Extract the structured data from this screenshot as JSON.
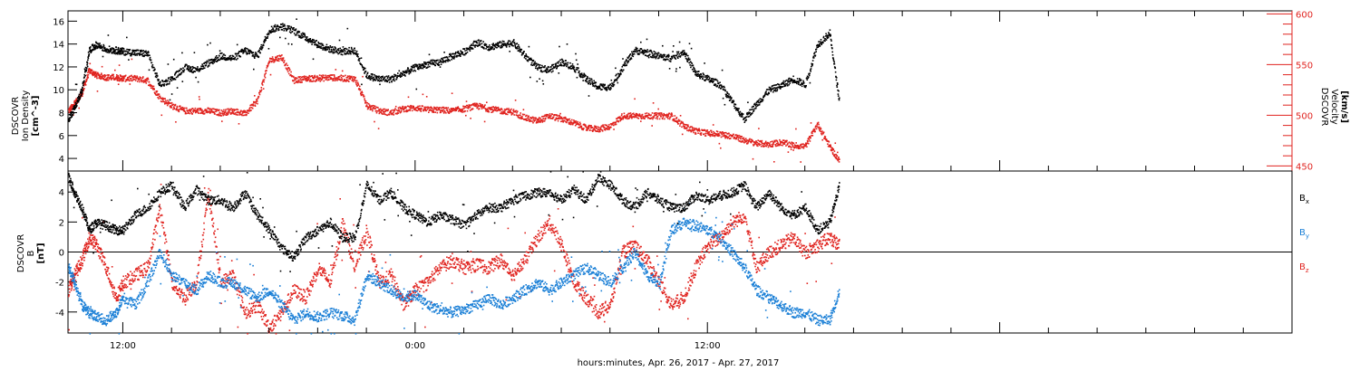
{
  "xlabel": "hours:minutes, Apr. 26, 2017 - Apr. 27, 2017",
  "x_tick_labels": [
    "12:00",
    "0:00",
    "12:00"
  ],
  "colors": {
    "black": "#000000",
    "red": "#e0231f",
    "blue": "#1a7fd6"
  },
  "chart_data": [
    {
      "type": "scatter",
      "panel": "top",
      "left_ylabel": [
        "DSCOVR",
        "Ion Density",
        "[cm^-3]"
      ],
      "right_ylabel": [
        "DSCOVR",
        "Velocity",
        "[km/s]"
      ],
      "x_unit": "hours since 2017-04-26 00:00 UT",
      "xlim": [
        9.75,
        60
      ],
      "left_ylim": [
        2.9,
        16.9
      ],
      "right_ylim": [
        445,
        603
      ],
      "left_yticks": [
        4,
        6,
        8,
        10,
        12,
        14,
        16
      ],
      "right_yticks": [
        450,
        500,
        550,
        600
      ],
      "series": [
        {
          "name": "Ion Density",
          "axis": "left",
          "color": "black",
          "x": [
            9.75,
            10.0,
            10.3,
            10.6,
            10.9,
            11.3,
            11.7,
            12.0,
            12.5,
            13.0,
            13.5,
            14.0,
            14.5,
            15.0,
            15.5,
            16.0,
            16.5,
            17.0,
            17.5,
            18.0,
            18.5,
            19.0,
            19.5,
            20.0,
            20.5,
            21.0,
            21.5,
            22.0,
            22.5,
            23.0,
            23.5,
            24.0,
            24.5,
            25.0,
            25.5,
            26.0,
            26.5,
            27.0,
            27.5,
            28.0,
            28.5,
            29.0,
            29.5,
            30.0,
            30.5,
            31.0,
            31.5,
            32.0,
            32.5,
            33.0,
            33.5,
            34.0,
            34.5,
            35.0,
            35.5,
            36.0,
            36.5,
            37.0,
            37.5,
            38.0,
            38.5,
            39.0,
            39.5,
            40.0,
            40.5,
            41.0,
            41.4
          ],
          "y": [
            7.5,
            8.5,
            10.0,
            13.5,
            14.0,
            13.6,
            13.5,
            13.4,
            13.3,
            13.2,
            10.5,
            11.0,
            12.0,
            11.8,
            12.4,
            13.0,
            12.8,
            13.5,
            13.0,
            15.3,
            15.6,
            15.2,
            14.6,
            14.0,
            13.6,
            13.4,
            13.5,
            11.3,
            11.0,
            11.0,
            11.5,
            12.0,
            12.3,
            12.5,
            13.0,
            13.4,
            14.2,
            13.8,
            14.0,
            14.2,
            13.0,
            12.0,
            11.8,
            12.5,
            12.0,
            11.0,
            10.3,
            10.3,
            12.0,
            13.5,
            13.3,
            13.0,
            12.8,
            13.4,
            11.5,
            11.0,
            10.5,
            9.0,
            7.5,
            8.8,
            10.0,
            10.4,
            11.0,
            10.5,
            14.0,
            15.0,
            9.0
          ]
        },
        {
          "name": "Velocity",
          "axis": "right",
          "color": "red",
          "x": [
            9.75,
            10.0,
            10.3,
            10.6,
            10.9,
            11.3,
            11.7,
            12.0,
            12.5,
            13.0,
            13.5,
            14.0,
            14.5,
            15.0,
            15.5,
            16.0,
            16.5,
            17.0,
            17.5,
            18.0,
            18.5,
            19.0,
            19.5,
            20.0,
            20.5,
            21.0,
            21.5,
            22.0,
            22.5,
            23.0,
            23.5,
            24.0,
            24.5,
            25.0,
            25.5,
            26.0,
            26.5,
            27.0,
            27.5,
            28.0,
            28.5,
            29.0,
            29.5,
            30.0,
            30.5,
            31.0,
            31.5,
            32.0,
            32.5,
            33.0,
            33.5,
            34.0,
            34.5,
            35.0,
            35.5,
            36.0,
            36.5,
            37.0,
            37.5,
            38.0,
            38.5,
            39.0,
            39.5,
            40.0,
            40.5,
            41.0,
            41.4
          ],
          "y": [
            505,
            512,
            522,
            545,
            540,
            538,
            538,
            537,
            537,
            535,
            518,
            510,
            505,
            505,
            505,
            503,
            505,
            502,
            515,
            555,
            558,
            535,
            537,
            537,
            538,
            537,
            537,
            510,
            505,
            503,
            507,
            508,
            506,
            506,
            505,
            507,
            510,
            507,
            505,
            504,
            498,
            495,
            500,
            497,
            493,
            488,
            487,
            490,
            500,
            500,
            500,
            500,
            500,
            490,
            485,
            483,
            482,
            480,
            476,
            473,
            472,
            474,
            471,
            470,
            492,
            470,
            455
          ]
        }
      ]
    },
    {
      "type": "scatter",
      "panel": "bottom",
      "ylabel": [
        "DSCOVR",
        "B",
        "[nT]"
      ],
      "x_unit": "hours since 2017-04-26 00:00 UT",
      "xlim": [
        9.75,
        60
      ],
      "ylim": [
        -5.4,
        5.4
      ],
      "yticks": [
        -4,
        -2,
        0,
        2,
        4
      ],
      "reference_line": 0,
      "series": [
        {
          "name": "Bx",
          "color": "black",
          "x": [
            9.75,
            10.0,
            10.3,
            10.6,
            10.9,
            11.3,
            11.7,
            12.0,
            12.5,
            13.0,
            13.5,
            14.0,
            14.5,
            15.0,
            15.5,
            16.0,
            16.5,
            17.0,
            17.5,
            18.0,
            18.5,
            19.0,
            19.5,
            20.0,
            20.5,
            21.0,
            21.5,
            22.0,
            22.5,
            23.0,
            23.5,
            24.0,
            24.5,
            25.0,
            25.5,
            26.0,
            26.5,
            27.0,
            27.5,
            28.0,
            28.5,
            29.0,
            29.5,
            30.0,
            30.5,
            31.0,
            31.5,
            32.0,
            32.5,
            33.0,
            33.5,
            34.0,
            34.5,
            35.0,
            35.5,
            36.0,
            36.5,
            37.0,
            37.5,
            38.0,
            38.5,
            39.0,
            39.5,
            40.0,
            40.5,
            41.0,
            41.4
          ],
          "y": [
            5.0,
            4.0,
            3.0,
            1.5,
            2.0,
            1.8,
            1.5,
            1.5,
            2.5,
            3.0,
            4.0,
            4.5,
            3.0,
            4.2,
            3.5,
            3.5,
            3.0,
            4.0,
            2.5,
            1.5,
            0.3,
            -0.3,
            1.0,
            1.5,
            2.0,
            1.0,
            1.0,
            4.5,
            3.5,
            4.0,
            3.0,
            2.5,
            2.0,
            2.5,
            2.2,
            1.8,
            2.5,
            3.0,
            3.0,
            3.5,
            3.8,
            4.0,
            4.0,
            3.5,
            4.2,
            3.5,
            5.0,
            4.5,
            3.5,
            3.0,
            4.0,
            3.5,
            3.0,
            3.0,
            3.8,
            3.5,
            3.8,
            4.0,
            4.5,
            3.0,
            4.0,
            3.0,
            2.5,
            3.0,
            1.5,
            2.0,
            4.5
          ]
        },
        {
          "name": "By",
          "color": "blue",
          "x": [
            9.75,
            10.0,
            10.3,
            10.6,
            10.9,
            11.3,
            11.7,
            12.0,
            12.5,
            13.0,
            13.5,
            14.0,
            14.5,
            15.0,
            15.5,
            16.0,
            16.5,
            17.0,
            17.5,
            18.0,
            18.5,
            19.0,
            19.5,
            20.0,
            20.5,
            21.0,
            21.5,
            22.0,
            22.5,
            23.0,
            23.5,
            24.0,
            24.5,
            25.0,
            25.5,
            26.0,
            26.5,
            27.0,
            27.5,
            28.0,
            28.5,
            29.0,
            29.5,
            30.0,
            30.5,
            31.0,
            31.5,
            32.0,
            32.5,
            33.0,
            33.5,
            34.0,
            34.5,
            35.0,
            35.5,
            36.0,
            36.5,
            37.0,
            37.5,
            38.0,
            38.5,
            39.0,
            39.5,
            40.0,
            40.5,
            41.0,
            41.4
          ],
          "y": [
            -1.0,
            -2.0,
            -3.5,
            -4.0,
            -4.3,
            -4.5,
            -4.0,
            -3.0,
            -3.5,
            -2.0,
            0.0,
            -1.5,
            -2.0,
            -2.5,
            -1.5,
            -2.0,
            -2.0,
            -2.5,
            -3.0,
            -2.5,
            -3.5,
            -4.5,
            -4.0,
            -4.3,
            -4.0,
            -4.2,
            -4.5,
            -1.5,
            -2.0,
            -2.5,
            -3.0,
            -2.8,
            -3.5,
            -3.8,
            -4.0,
            -3.8,
            -3.5,
            -3.0,
            -3.5,
            -3.0,
            -2.5,
            -2.0,
            -2.5,
            -2.0,
            -1.5,
            -1.0,
            -1.5,
            -2.0,
            -1.0,
            0.0,
            -1.5,
            -2.0,
            1.5,
            2.0,
            1.8,
            1.5,
            1.0,
            0.0,
            -1.0,
            -2.5,
            -3.0,
            -3.5,
            -4.0,
            -4.0,
            -4.5,
            -4.5,
            -2.5
          ]
        },
        {
          "name": "Bz",
          "color": "red",
          "x": [
            9.75,
            10.0,
            10.3,
            10.6,
            10.9,
            11.3,
            11.7,
            12.0,
            12.5,
            13.0,
            13.5,
            14.0,
            14.5,
            15.0,
            15.5,
            16.0,
            16.5,
            17.0,
            17.5,
            18.0,
            18.5,
            19.0,
            19.5,
            20.0,
            20.5,
            21.0,
            21.5,
            22.0,
            22.5,
            23.0,
            23.5,
            24.0,
            24.5,
            25.0,
            25.5,
            26.0,
            26.5,
            27.0,
            27.5,
            28.0,
            28.5,
            29.0,
            29.5,
            30.0,
            30.5,
            31.0,
            31.5,
            32.0,
            32.5,
            33.0,
            33.5,
            34.0,
            34.5,
            35.0,
            35.5,
            36.0,
            36.5,
            37.0,
            37.5,
            38.0,
            38.5,
            39.0,
            39.5,
            40.0,
            40.5,
            41.0,
            41.4
          ],
          "y": [
            -2.5,
            -1.5,
            -0.5,
            1.0,
            0.5,
            -1.0,
            -3.0,
            -2.0,
            -1.5,
            -1.0,
            3.0,
            -2.0,
            -3.0,
            -2.0,
            4.0,
            -2.0,
            -1.5,
            -4.0,
            -3.5,
            -5.0,
            -4.0,
            -2.5,
            -3.0,
            -1.0,
            -2.0,
            2.0,
            -1.0,
            1.5,
            -2.0,
            -1.5,
            -3.5,
            -2.5,
            -2.0,
            -1.0,
            -0.5,
            -1.0,
            -0.8,
            -1.0,
            -0.5,
            -1.5,
            -0.5,
            1.0,
            2.0,
            0.5,
            -2.0,
            -3.0,
            -4.0,
            -3.5,
            0.0,
            0.5,
            -0.5,
            -2.0,
            -3.5,
            -3.0,
            -1.0,
            0.5,
            1.0,
            2.0,
            2.5,
            -1.0,
            0.0,
            0.5,
            1.0,
            0.0,
            0.5,
            1.0,
            0.5
          ]
        }
      ]
    }
  ]
}
